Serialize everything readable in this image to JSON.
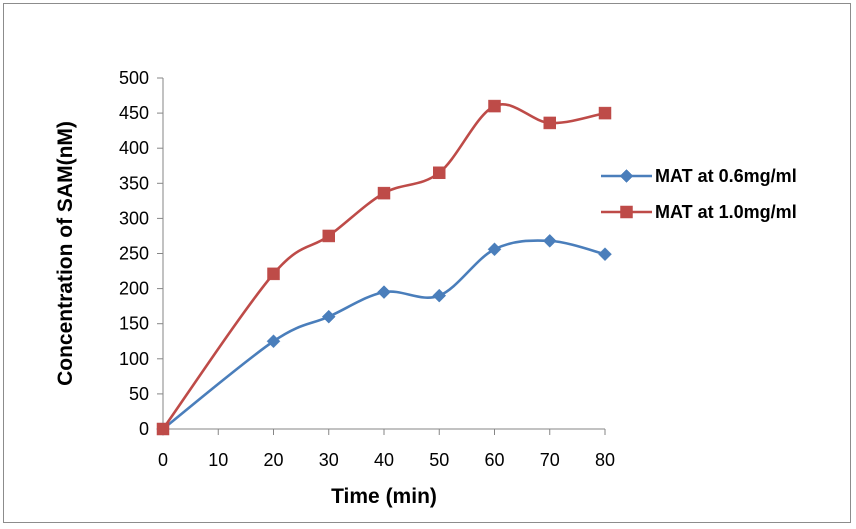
{
  "chart_data": {
    "type": "line",
    "x": [
      0,
      20,
      30,
      40,
      50,
      60,
      70,
      80
    ],
    "x_ticks": [
      0,
      10,
      20,
      30,
      40,
      50,
      60,
      70,
      80
    ],
    "xlim": [
      0,
      80
    ],
    "ylim": [
      0,
      500
    ],
    "y_ticks": [
      0,
      50,
      100,
      150,
      200,
      250,
      300,
      350,
      400,
      450,
      500
    ],
    "xlabel": "Time (min)",
    "ylabel": "Concentration of SAM(nM)",
    "grid": false,
    "legend_position": "right",
    "series": [
      {
        "name": "MAT at 0.6mg/ml",
        "color": "#4a7ebb",
        "marker": "diamond",
        "values": [
          0,
          125,
          160,
          195,
          190,
          256,
          268,
          249
        ]
      },
      {
        "name": "MAT at 1.0mg/ml",
        "color": "#be4b48",
        "marker": "square",
        "values": [
          0,
          221,
          275,
          336,
          365,
          460,
          436,
          450
        ]
      }
    ]
  }
}
